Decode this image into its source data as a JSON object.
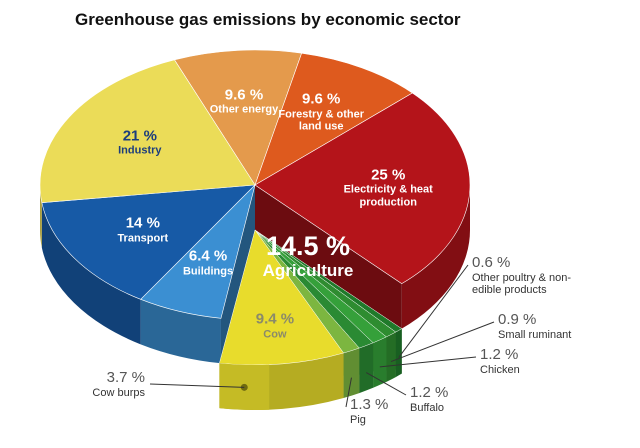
{
  "chart_data": {
    "type": "pie",
    "title": "Greenhouse gas emissions by economic sector",
    "categories": [
      "Other energy",
      "Forestry & other land use",
      "Electricity & heat production",
      "Agriculture",
      "Buildings",
      "Transport",
      "Industry"
    ],
    "values": [
      9.6,
      9.6,
      25,
      14.5,
      6.4,
      14,
      21
    ],
    "value_labels": [
      "9.6 %",
      "9.6 %",
      "25 %",
      "14.5 %",
      "6.4 %",
      "14 %",
      "21 %"
    ],
    "colors": [
      "#e49a4c",
      "#de5a1e",
      "#b4141a",
      "#3f9a2c",
      "#3b8fd2",
      "#175aa6",
      "#ebdc58"
    ],
    "breakdown": {
      "categories": [
        "Other poultry & non-edible products",
        "Small ruminant",
        "Chicken",
        "Buffalo",
        "Pig",
        "Cow"
      ],
      "values": [
        0.6,
        0.9,
        1.2,
        1.2,
        1.3,
        9.4
      ],
      "value_labels": [
        "0.6 %",
        "0.9 %",
        "1.2 %",
        "1.2 %",
        "1.3 %",
        "9.4 %"
      ],
      "colors": [
        "#1f7a2a",
        "#2e8c30",
        "#35a03a",
        "#2a8a33",
        "#7cb640",
        "#e8dc2c"
      ]
    },
    "detail": {
      "label": "Cow burps",
      "value": 3.7,
      "value_label": "3.7 %",
      "color": "#6f6a10"
    }
  }
}
